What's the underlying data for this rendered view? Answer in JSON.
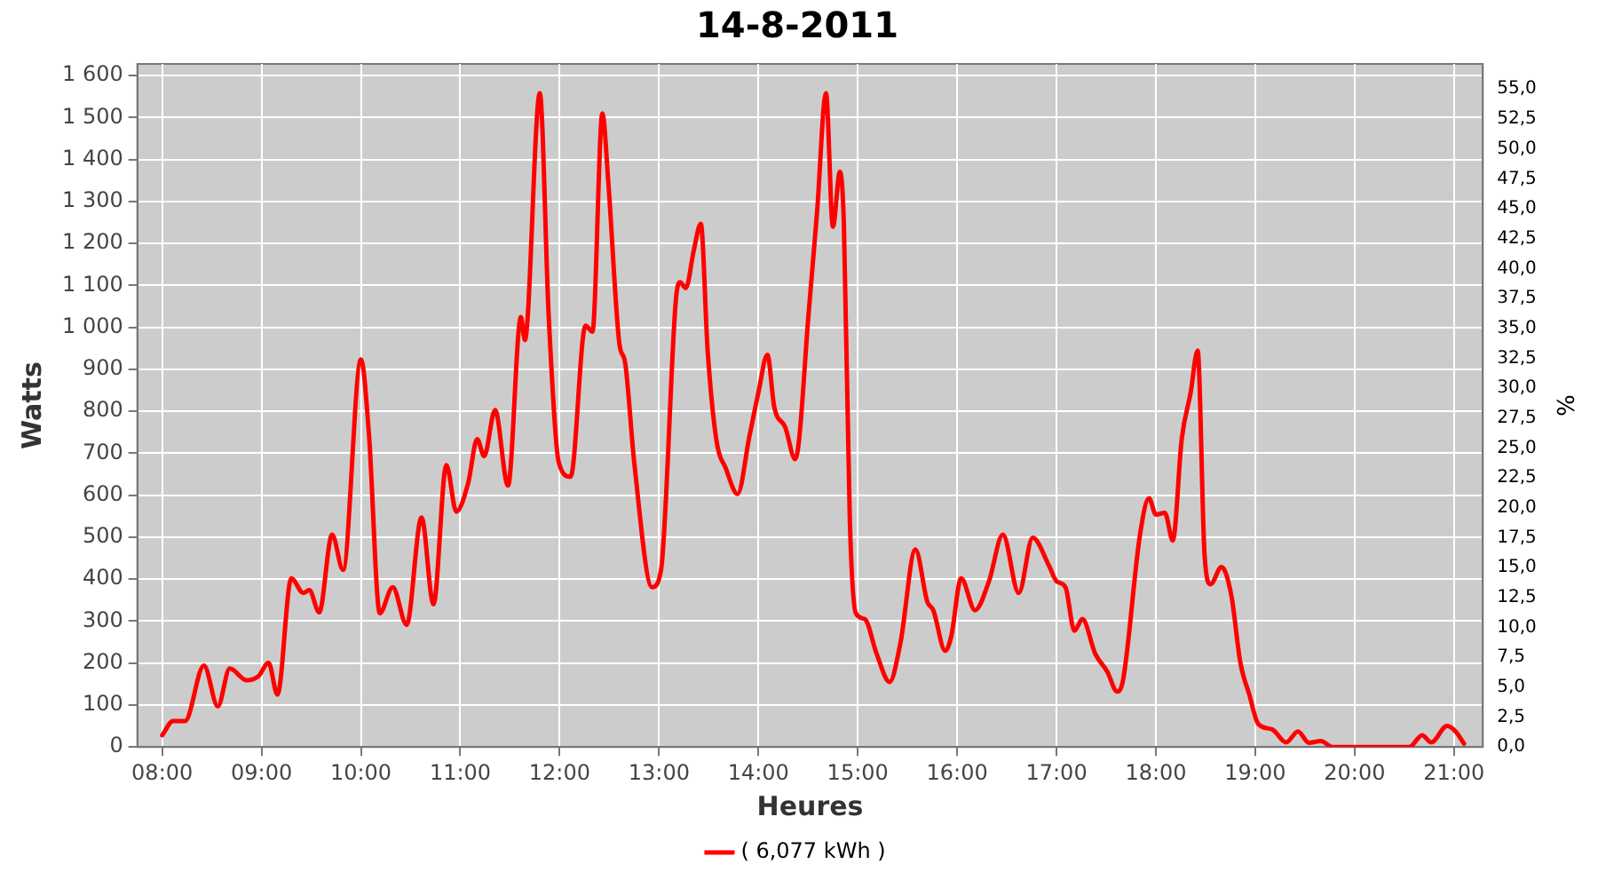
{
  "chart_data": {
    "type": "line",
    "title": "14-8-2011",
    "xlabel": "Heures",
    "ylabel": "Watts",
    "y2label": "%",
    "xlim": [
      7.75,
      21.29
    ],
    "xticks": [
      {
        "value": 8,
        "label": "08:00"
      },
      {
        "value": 9,
        "label": "09:00"
      },
      {
        "value": 10,
        "label": "10:00"
      },
      {
        "value": 11,
        "label": "11:00"
      },
      {
        "value": 12,
        "label": "12:00"
      },
      {
        "value": 13,
        "label": "13:00"
      },
      {
        "value": 14,
        "label": "14:00"
      },
      {
        "value": 15,
        "label": "15:00"
      },
      {
        "value": 16,
        "label": "16:00"
      },
      {
        "value": 17,
        "label": "17:00"
      },
      {
        "value": 18,
        "label": "18:00"
      },
      {
        "value": 19,
        "label": "19:00"
      },
      {
        "value": 20,
        "label": "20:00"
      },
      {
        "value": 21,
        "label": "21:00"
      }
    ],
    "ylim": [
      0,
      1628
    ],
    "yticks": [
      0,
      100,
      200,
      300,
      400,
      500,
      600,
      700,
      800,
      900,
      {
        "value": 1000,
        "label": "1 000"
      },
      {
        "value": 1100,
        "label": "1 100"
      },
      {
        "value": 1200,
        "label": "1 200"
      },
      {
        "value": 1300,
        "label": "1 300"
      },
      {
        "value": 1400,
        "label": "1 400"
      },
      {
        "value": 1500,
        "label": "1 500"
      },
      {
        "value": 1600,
        "label": "1 600"
      }
    ],
    "y2lim": [
      0,
      57.1
    ],
    "y2ticks": [
      {
        "value": 0,
        "label": "0,0"
      },
      {
        "value": 2.5,
        "label": "2,5"
      },
      {
        "value": 5,
        "label": "5,0"
      },
      {
        "value": 7.5,
        "label": "7,5"
      },
      {
        "value": 10,
        "label": "10,0"
      },
      {
        "value": 12.5,
        "label": "12,5"
      },
      {
        "value": 15,
        "label": "15,0"
      },
      {
        "value": 17.5,
        "label": "17,5"
      },
      {
        "value": 20,
        "label": "20,0"
      },
      {
        "value": 22.5,
        "label": "22,5"
      },
      {
        "value": 25,
        "label": "25,0"
      },
      {
        "value": 27.5,
        "label": "27,5"
      },
      {
        "value": 30,
        "label": "30,0"
      },
      {
        "value": 32.5,
        "label": "32,5"
      },
      {
        "value": 35,
        "label": "35,0"
      },
      {
        "value": 37.5,
        "label": "37,5"
      },
      {
        "value": 40,
        "label": "40,0"
      },
      {
        "value": 42.5,
        "label": "42,5"
      },
      {
        "value": 45,
        "label": "45,0"
      },
      {
        "value": 47.5,
        "label": "47,5"
      },
      {
        "value": 50,
        "label": "50,0"
      },
      {
        "value": 52.5,
        "label": "52,5"
      },
      {
        "value": 55,
        "label": "55,0"
      }
    ],
    "grid": true,
    "legend": "bottom",
    "marker": "none",
    "line_style": "solid",
    "series": [
      {
        "name": "( 6,077 kWh )",
        "color": "#ff0000",
        "x": [
          8.0,
          8.11,
          8.23,
          8.42,
          8.56,
          8.68,
          8.85,
          8.97,
          9.07,
          9.16,
          9.3,
          9.42,
          9.48,
          9.58,
          9.71,
          9.82,
          10.0,
          10.08,
          10.19,
          10.32,
          10.46,
          10.61,
          10.73,
          10.86,
          10.96,
          11.08,
          11.17,
          11.24,
          11.35,
          11.48,
          11.61,
          11.65,
          11.8,
          11.89,
          11.99,
          12.11,
          12.26,
          12.33,
          12.43,
          12.49,
          12.6,
          12.66,
          12.75,
          12.93,
          13.02,
          13.17,
          13.21,
          13.27,
          13.35,
          13.42,
          13.49,
          13.58,
          13.67,
          13.79,
          13.91,
          14.0,
          14.09,
          14.16,
          14.27,
          14.37,
          14.41,
          14.5,
          14.59,
          14.68,
          14.75,
          14.82,
          14.86,
          14.92,
          14.98,
          15.07,
          15.19,
          15.32,
          15.43,
          15.58,
          15.7,
          15.76,
          15.88,
          15.94,
          16.04,
          16.18,
          16.32,
          16.46,
          16.62,
          16.76,
          16.93,
          17.0,
          17.09,
          17.18,
          17.26,
          17.39,
          17.51,
          17.61,
          17.67,
          17.84,
          17.93,
          18.0,
          18.09,
          18.17,
          18.26,
          18.35,
          18.42,
          18.49,
          18.55,
          18.66,
          18.76,
          18.85,
          18.94,
          19.03,
          19.17,
          19.31,
          19.43,
          19.54,
          19.66,
          19.78,
          20.23,
          20.55,
          20.68,
          20.77,
          20.93,
          21.02,
          21.1
        ],
        "values": [
          28,
          62,
          62,
          194,
          97,
          187,
          159,
          169,
          201,
          125,
          402,
          367,
          374,
          321,
          506,
          422,
          924,
          748,
          319,
          381,
          291,
          547,
          340,
          672,
          561,
          630,
          734,
          693,
          803,
          623,
          1025,
          970,
          1558,
          1025,
          679,
          644,
          1004,
          990,
          1510,
          1344,
          963,
          914,
          679,
          381,
          422,
          1067,
          1108,
          1094,
          1184,
          1247,
          942,
          727,
          665,
          603,
          741,
          845,
          935,
          810,
          762,
          686,
          734,
          1018,
          1274,
          1558,
          1240,
          1371,
          1247,
          540,
          319,
          305,
          222,
          155,
          249,
          471,
          346,
          326,
          229,
          263,
          402,
          326,
          395,
          506,
          367,
          499,
          429,
          395,
          381,
          277,
          305,
          222,
          180,
          132,
          160,
          506,
          593,
          554,
          558,
          492,
          734,
          845,
          945,
          457,
          388,
          429,
          360,
          201,
          125,
          55,
          42,
          11,
          37,
          10,
          14,
          0,
          0,
          0,
          28,
          11,
          50,
          36,
          8
        ]
      }
    ]
  }
}
